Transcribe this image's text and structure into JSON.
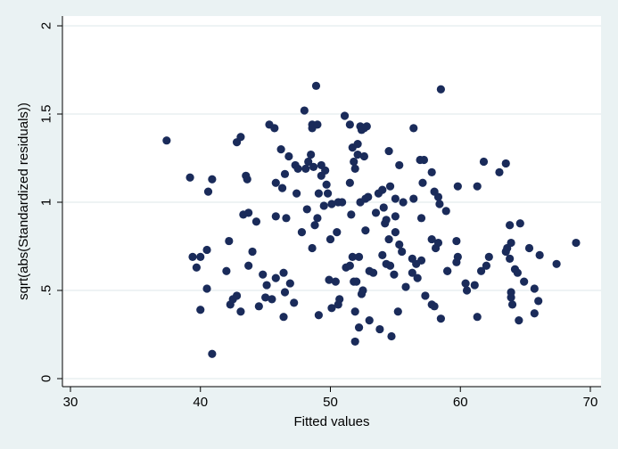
{
  "chart_data": {
    "type": "scatter",
    "title": "",
    "xlabel": "Fitted values",
    "ylabel": "sqrt(abs(Standardized residuals))",
    "xlim": [
      30,
      70
    ],
    "ylim": [
      0,
      2
    ],
    "xticks": [
      30,
      40,
      50,
      60,
      70
    ],
    "xtick_labels": [
      "30",
      "40",
      "50",
      "60",
      "70"
    ],
    "yticks": [
      0,
      0.5,
      1,
      1.5,
      2
    ],
    "ytick_labels": [
      "0",
      ".5",
      "1",
      "1.5",
      "2"
    ],
    "grid": "horizontal",
    "marker_color": "#1a2b5a",
    "background_color": "#eaf2f3",
    "plot_background_color": "#ffffff",
    "gridline_color": "#e3ecee",
    "points": [
      [
        37.4,
        1.35
      ],
      [
        39.2,
        1.14
      ],
      [
        39.4,
        0.69
      ],
      [
        39.7,
        0.63
      ],
      [
        40.0,
        0.69
      ],
      [
        40.0,
        0.39
      ],
      [
        40.5,
        0.73
      ],
      [
        40.5,
        0.51
      ],
      [
        40.6,
        1.06
      ],
      [
        40.9,
        1.13
      ],
      [
        40.9,
        0.14
      ],
      [
        42.0,
        0.61
      ],
      [
        42.2,
        0.78
      ],
      [
        42.3,
        0.42
      ],
      [
        42.5,
        0.45
      ],
      [
        42.8,
        0.47
      ],
      [
        42.8,
        1.34
      ],
      [
        43.1,
        1.37
      ],
      [
        43.1,
        0.38
      ],
      [
        43.3,
        0.93
      ],
      [
        43.5,
        1.15
      ],
      [
        43.6,
        1.13
      ],
      [
        43.7,
        0.94
      ],
      [
        43.7,
        0.64
      ],
      [
        44.0,
        0.72
      ],
      [
        44.3,
        0.89
      ],
      [
        44.5,
        0.41
      ],
      [
        44.8,
        0.59
      ],
      [
        45.0,
        0.46
      ],
      [
        45.1,
        0.53
      ],
      [
        45.3,
        1.44
      ],
      [
        45.5,
        0.45
      ],
      [
        45.7,
        1.42
      ],
      [
        45.8,
        0.57
      ],
      [
        45.8,
        0.92
      ],
      [
        45.8,
        1.11
      ],
      [
        46.2,
        1.3
      ],
      [
        46.3,
        1.08
      ],
      [
        46.4,
        0.6
      ],
      [
        46.4,
        0.35
      ],
      [
        46.5,
        1.16
      ],
      [
        46.5,
        0.49
      ],
      [
        46.6,
        0.91
      ],
      [
        46.8,
        1.26
      ],
      [
        46.9,
        0.54
      ],
      [
        47.2,
        0.43
      ],
      [
        47.3,
        1.21
      ],
      [
        47.4,
        1.05
      ],
      [
        47.5,
        1.19
      ],
      [
        47.8,
        0.83
      ],
      [
        48.0,
        1.52
      ],
      [
        48.1,
        1.19
      ],
      [
        48.2,
        0.96
      ],
      [
        48.3,
        1.23
      ],
      [
        48.5,
        1.27
      ],
      [
        48.6,
        1.44
      ],
      [
        48.6,
        1.42
      ],
      [
        48.6,
        0.74
      ],
      [
        48.7,
        1.2
      ],
      [
        48.8,
        0.87
      ],
      [
        48.9,
        1.66
      ],
      [
        49.0,
        1.44
      ],
      [
        49.0,
        0.91
      ],
      [
        49.1,
        1.05
      ],
      [
        49.1,
        0.36
      ],
      [
        49.3,
        1.15
      ],
      [
        49.3,
        1.21
      ],
      [
        49.5,
        0.98
      ],
      [
        49.6,
        1.18
      ],
      [
        49.7,
        1.1
      ],
      [
        49.8,
        1.05
      ],
      [
        49.9,
        0.56
      ],
      [
        50.0,
        0.79
      ],
      [
        50.1,
        0.4
      ],
      [
        50.1,
        0.99
      ],
      [
        50.4,
        0.55
      ],
      [
        50.5,
        0.83
      ],
      [
        50.6,
        1.0
      ],
      [
        50.6,
        0.42
      ],
      [
        50.7,
        0.45
      ],
      [
        50.9,
        1.0
      ],
      [
        51.1,
        1.49
      ],
      [
        51.2,
        0.63
      ],
      [
        51.5,
        1.44
      ],
      [
        51.5,
        0.64
      ],
      [
        51.5,
        1.11
      ],
      [
        51.6,
        0.93
      ],
      [
        51.7,
        1.31
      ],
      [
        51.7,
        0.69
      ],
      [
        51.8,
        0.55
      ],
      [
        51.8,
        1.23
      ],
      [
        51.9,
        1.19
      ],
      [
        51.9,
        0.38
      ],
      [
        51.9,
        0.21
      ],
      [
        52.0,
        0.55
      ],
      [
        52.1,
        1.27
      ],
      [
        52.1,
        1.33
      ],
      [
        52.2,
        0.69
      ],
      [
        52.2,
        0.29
      ],
      [
        52.3,
        1.43
      ],
      [
        52.3,
        1.0
      ],
      [
        52.4,
        1.41
      ],
      [
        52.4,
        0.48
      ],
      [
        52.5,
        0.5
      ],
      [
        52.6,
        1.42
      ],
      [
        52.6,
        1.26
      ],
      [
        52.7,
        1.02
      ],
      [
        52.7,
        0.84
      ],
      [
        52.8,
        1.43
      ],
      [
        52.9,
        1.03
      ],
      [
        53.0,
        0.61
      ],
      [
        53.0,
        0.33
      ],
      [
        53.3,
        0.6
      ],
      [
        53.5,
        0.94
      ],
      [
        53.7,
        1.05
      ],
      [
        53.8,
        0.28
      ],
      [
        54.0,
        0.7
      ],
      [
        54.0,
        1.07
      ],
      [
        54.1,
        0.97
      ],
      [
        54.2,
        0.88
      ],
      [
        54.3,
        0.65
      ],
      [
        54.3,
        0.9
      ],
      [
        54.5,
        1.29
      ],
      [
        54.5,
        0.79
      ],
      [
        54.6,
        1.09
      ],
      [
        54.6,
        0.64
      ],
      [
        54.7,
        0.24
      ],
      [
        54.9,
        0.59
      ],
      [
        55.0,
        1.02
      ],
      [
        55.0,
        0.92
      ],
      [
        55.0,
        0.83
      ],
      [
        55.2,
        0.38
      ],
      [
        55.3,
        1.21
      ],
      [
        55.3,
        0.76
      ],
      [
        55.5,
        0.72
      ],
      [
        55.6,
        1.0
      ],
      [
        55.8,
        0.52
      ],
      [
        56.3,
        0.6
      ],
      [
        56.3,
        0.68
      ],
      [
        56.4,
        1.02
      ],
      [
        56.4,
        1.42
      ],
      [
        56.6,
        0.65
      ],
      [
        56.7,
        0.57
      ],
      [
        56.9,
        1.24
      ],
      [
        57.0,
        0.67
      ],
      [
        57.0,
        0.91
      ],
      [
        57.1,
        1.11
      ],
      [
        57.2,
        1.24
      ],
      [
        57.3,
        0.47
      ],
      [
        57.8,
        1.17
      ],
      [
        57.8,
        0.79
      ],
      [
        57.8,
        0.42
      ],
      [
        58.0,
        0.41
      ],
      [
        58.0,
        1.06
      ],
      [
        58.1,
        0.74
      ],
      [
        58.3,
        0.77
      ],
      [
        58.3,
        1.03
      ],
      [
        58.4,
        0.99
      ],
      [
        58.5,
        1.64
      ],
      [
        58.5,
        0.34
      ],
      [
        58.9,
        0.95
      ],
      [
        59.0,
        0.61
      ],
      [
        59.0,
        0.61
      ],
      [
        59.7,
        0.78
      ],
      [
        59.7,
        0.66
      ],
      [
        59.8,
        1.09
      ],
      [
        59.8,
        0.69
      ],
      [
        60.4,
        0.54
      ],
      [
        60.5,
        0.5
      ],
      [
        61.1,
        0.53
      ],
      [
        61.3,
        1.09
      ],
      [
        61.3,
        0.35
      ],
      [
        61.6,
        0.61
      ],
      [
        61.8,
        1.23
      ],
      [
        62.0,
        0.64
      ],
      [
        62.2,
        0.69
      ],
      [
        63.0,
        1.17
      ],
      [
        63.5,
        1.22
      ],
      [
        63.5,
        0.72
      ],
      [
        63.6,
        0.74
      ],
      [
        63.8,
        0.68
      ],
      [
        63.8,
        0.87
      ],
      [
        63.9,
        0.77
      ],
      [
        63.9,
        0.49
      ],
      [
        63.9,
        0.46
      ],
      [
        64.0,
        0.42
      ],
      [
        64.2,
        0.62
      ],
      [
        64.4,
        0.6
      ],
      [
        64.5,
        0.33
      ],
      [
        64.6,
        0.88
      ],
      [
        64.9,
        0.55
      ],
      [
        65.3,
        0.74
      ],
      [
        65.7,
        0.51
      ],
      [
        65.7,
        0.37
      ],
      [
        66.0,
        0.44
      ],
      [
        66.1,
        0.7
      ],
      [
        67.4,
        0.65
      ],
      [
        68.9,
        0.77
      ]
    ]
  }
}
